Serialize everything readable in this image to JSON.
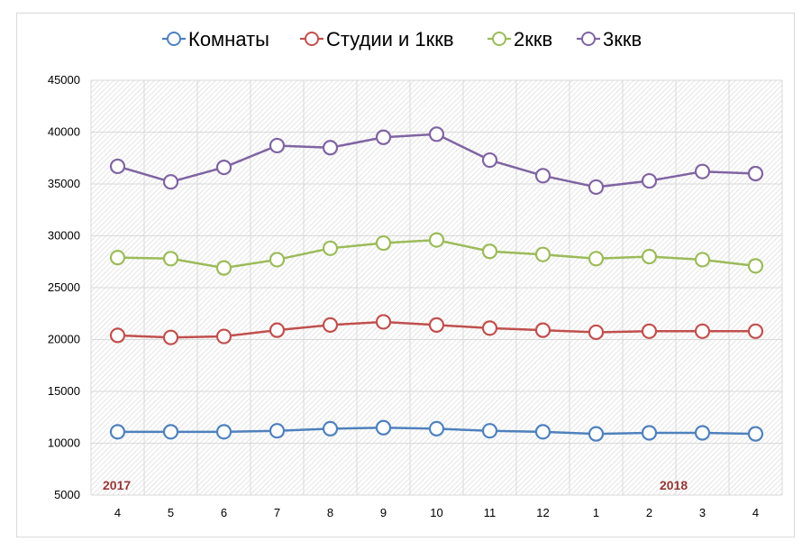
{
  "chart_data": {
    "type": "line",
    "title": "",
    "xlabel": "",
    "ylabel": "",
    "categories": [
      "4",
      "5",
      "6",
      "7",
      "8",
      "9",
      "10",
      "11",
      "12",
      "1",
      "2",
      "3",
      "4"
    ],
    "ylim": [
      5000,
      45000
    ],
    "yticks": [
      5000,
      10000,
      15000,
      20000,
      25000,
      30000,
      35000,
      40000,
      45000
    ],
    "grid": true,
    "legend": "top",
    "annotations": [
      "2017",
      "2018"
    ],
    "series": [
      {
        "name": "Комнаты",
        "color": "#4f81bd",
        "values": [
          11100,
          11100,
          11100,
          11200,
          11400,
          11500,
          11400,
          11200,
          11100,
          10900,
          11000,
          11000,
          10900
        ]
      },
      {
        "name": "Студии и 1ккв",
        "color": "#c0504d",
        "values": [
          20400,
          20200,
          20300,
          20900,
          21400,
          21700,
          21400,
          21100,
          20900,
          20700,
          20800,
          20800,
          20800
        ]
      },
      {
        "name": "2ккв",
        "color": "#9bbb59",
        "values": [
          27900,
          27800,
          26900,
          27700,
          28800,
          29300,
          29600,
          28500,
          28200,
          27800,
          28000,
          27700,
          27100
        ]
      },
      {
        "name": "3ккв",
        "color": "#8064a2",
        "values": [
          36700,
          35200,
          36600,
          38700,
          38500,
          39500,
          39800,
          37300,
          35800,
          34700,
          35300,
          36200,
          36000
        ]
      }
    ]
  }
}
